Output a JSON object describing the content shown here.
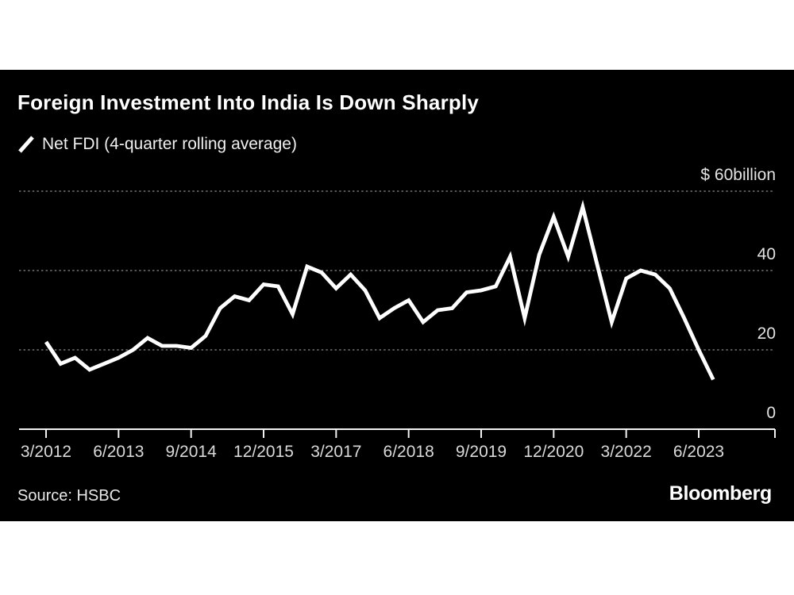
{
  "header": {
    "title": "Foreign Investment Into India Is Down Sharply",
    "legend_label": "Net FDI (4-quarter rolling average)"
  },
  "footer": {
    "source": "Source: HSBC",
    "brand": "Bloomberg"
  },
  "colors": {
    "background": "#000000",
    "line": "#ffffff",
    "grid": "#767676",
    "axis": "#f2f2f2",
    "text": "#ffffff"
  },
  "chart_data": {
    "type": "line",
    "title": "Foreign Investment Into India Is Down Sharply",
    "series_name": "Net FDI (4-quarter rolling average)",
    "x": [
      "3/2012",
      "6/2012",
      "9/2012",
      "12/2012",
      "3/2013",
      "6/2013",
      "9/2013",
      "12/2013",
      "3/2014",
      "6/2014",
      "9/2014",
      "12/2014",
      "3/2015",
      "6/2015",
      "9/2015",
      "12/2015",
      "3/2016",
      "6/2016",
      "9/2016",
      "12/2016",
      "3/2017",
      "6/2017",
      "9/2017",
      "12/2017",
      "3/2018",
      "6/2018",
      "9/2018",
      "12/2018",
      "3/2019",
      "6/2019",
      "9/2019",
      "12/2019",
      "3/2020",
      "6/2020",
      "9/2020",
      "12/2020",
      "3/2021",
      "6/2021",
      "9/2021",
      "12/2021",
      "3/2022",
      "6/2022",
      "9/2022",
      "12/2022",
      "3/2023",
      "6/2023",
      "9/2023"
    ],
    "values": [
      22,
      16.5,
      18,
      15,
      16.5,
      18,
      20,
      23,
      21,
      21,
      20.5,
      23.5,
      30.5,
      33.5,
      32.5,
      36.5,
      36,
      29,
      41,
      39.5,
      35.5,
      39,
      35,
      28,
      30.5,
      32.5,
      27,
      30,
      30.5,
      34.5,
      35,
      36,
      43.5,
      28,
      44,
      53.5,
      43.5,
      56,
      41.5,
      27,
      38,
      40,
      39,
      35.5,
      28,
      20,
      12.5
    ],
    "x_tick_every": 5,
    "x_tick_labels": [
      "3/2012",
      "6/2013",
      "9/2014",
      "12/2015",
      "3/2017",
      "6/2018",
      "9/2019",
      "12/2020",
      "3/2022",
      "6/2023"
    ],
    "y_axis": {
      "ticks": [
        0,
        20,
        40,
        60
      ],
      "tick_labels": [
        "0",
        "20",
        "40",
        "$ 60billion"
      ],
      "range": [
        0,
        60
      ]
    },
    "grid": "horizontal-dotted",
    "legend_position": "top-left",
    "line_color": "#ffffff",
    "background": "#000000"
  }
}
